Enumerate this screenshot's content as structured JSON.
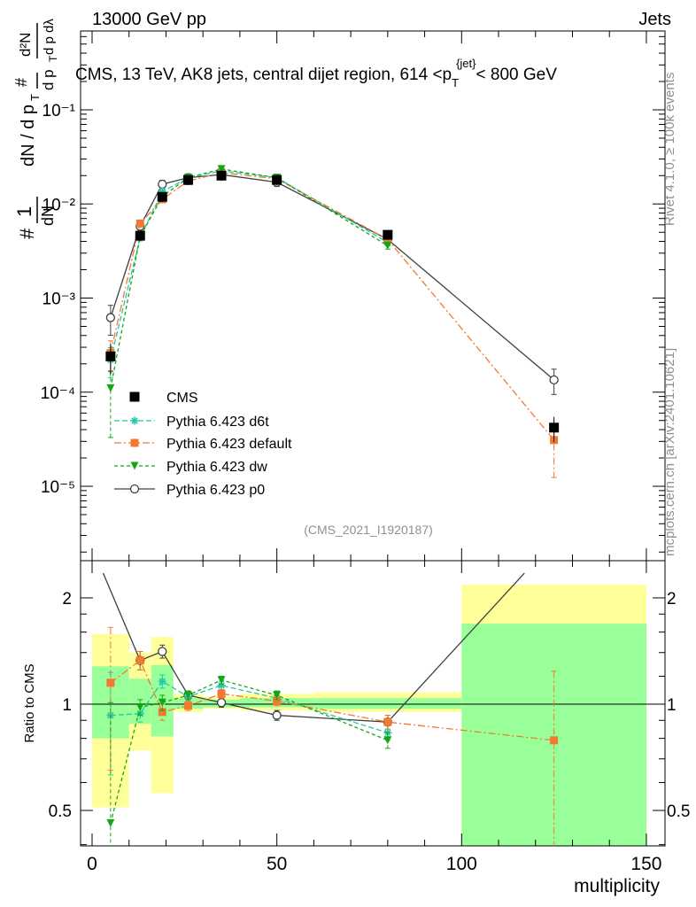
{
  "header": {
    "left": "13000 GeV pp",
    "right": "Jets",
    "plot_title": "CMS, 13 TeV, AK8 jets, central dijet region, 614 <p_T^{jet}< 800 GeV",
    "side_rivet": "Rivet 4.1.0, ≥ 100k events",
    "side_mcplots": "mcplots.cern.ch [arXiv:2401.10621]",
    "analysis_id": "(CMS_2021_I1920187)"
  },
  "colors": {
    "cms": "#000000",
    "d6t": "#22c8aa",
    "default": "#f07a30",
    "dw": "#13a813",
    "p0": "#404040",
    "band_outer": "#ffff99",
    "band_inner": "#99ff99"
  },
  "chart_data": [
    {
      "type": "line",
      "panel": "main",
      "xlabel": "multiplicity",
      "ylabel": "1/#N d#N/dp_T d²N/dp_T dλ",
      "yscale": "log",
      "ylim": [
        2e-06,
        0.3
      ],
      "xlim": [
        -3,
        153
      ],
      "y_tick_labels": [
        "10⁻⁵",
        "10⁻⁴",
        "10⁻³",
        "10⁻²",
        "10⁻¹"
      ],
      "legend_position": "lower-left",
      "series": [
        {
          "name": "CMS",
          "key": "cms",
          "marker": "square",
          "x": [
            5,
            13,
            19,
            26,
            35,
            50,
            80,
            125
          ],
          "y": [
            0.00024,
            0.0046,
            0.0119,
            0.018,
            0.02,
            0.018,
            0.0047,
            4.2e-05
          ]
        },
        {
          "name": "Pythia 6.423 d6t",
          "key": "d6t",
          "marker": "star",
          "dash": "6,3",
          "x": [
            5,
            13,
            19,
            26,
            35,
            50,
            80
          ],
          "y": [
            0.00022,
            0.0044,
            0.0135,
            0.019,
            0.0225,
            0.019,
            0.0039
          ]
        },
        {
          "name": "Pythia 6.423 default",
          "key": "default",
          "marker": "square",
          "dash": "8,3,2,3",
          "x": [
            5,
            13,
            19,
            26,
            35,
            50,
            80,
            125
          ],
          "y": [
            0.00026,
            0.0062,
            0.0112,
            0.0175,
            0.0215,
            0.0185,
            0.0042,
            3.1e-05
          ]
        },
        {
          "name": "Pythia 6.423 dw",
          "key": "dw",
          "marker": "triangle-down",
          "dash": "4,3",
          "x": [
            5,
            13,
            19,
            26,
            35,
            50,
            80
          ],
          "y": [
            0.00011,
            0.0045,
            0.012,
            0.019,
            0.0235,
            0.019,
            0.0036
          ]
        },
        {
          "name": "Pythia 6.423 p0",
          "key": "p0",
          "marker": "circle-open",
          "dash": "",
          "x": [
            5,
            13,
            19,
            26,
            35,
            50,
            80,
            125
          ],
          "y": [
            0.00062,
            0.0058,
            0.0162,
            0.019,
            0.0205,
            0.017,
            0.0042,
            0.000135
          ]
        }
      ]
    },
    {
      "type": "line",
      "panel": "ratio",
      "xlabel": "multiplicity",
      "ylabel": "Ratio to CMS",
      "ylim": [
        0.35,
        2.3
      ],
      "xlim": [
        -3,
        153
      ],
      "x_tick_labels": [
        "0",
        "50",
        "100",
        "150"
      ],
      "y_tick_labels": [
        "0.5",
        "1",
        "2"
      ],
      "bands": [
        {
          "x0": 0,
          "x1": 10,
          "outer": [
            0.51,
            1.58
          ],
          "inner": [
            0.8,
            1.28
          ]
        },
        {
          "x0": 10,
          "x1": 16,
          "outer": [
            0.74,
            1.4
          ],
          "inner": [
            0.88,
            1.18
          ]
        },
        {
          "x0": 16,
          "x1": 22,
          "outer": [
            0.56,
            1.55
          ],
          "inner": [
            0.81,
            1.29
          ]
        },
        {
          "x0": 22,
          "x1": 30,
          "outer": [
            0.95,
            1.07
          ],
          "inner": [
            0.97,
            1.04
          ]
        },
        {
          "x0": 30,
          "x1": 40,
          "outer": [
            0.97,
            1.05
          ],
          "inner": [
            0.98,
            1.03
          ]
        },
        {
          "x0": 40,
          "x1": 60,
          "outer": [
            0.96,
            1.07
          ],
          "inner": [
            0.98,
            1.04
          ]
        },
        {
          "x0": 60,
          "x1": 100,
          "outer": [
            0.95,
            1.08
          ],
          "inner": [
            0.97,
            1.04
          ]
        },
        {
          "x0": 100,
          "x1": 150,
          "outer": [
            0.35,
            2.18
          ],
          "inner": [
            0.35,
            1.69
          ]
        }
      ],
      "series": [
        {
          "name": "Pythia 6.423 d6t",
          "key": "d6t",
          "marker": "star",
          "dash": "6,3",
          "x": [
            5,
            13,
            19,
            26,
            35,
            50,
            80
          ],
          "y": [
            0.93,
            0.94,
            1.16,
            1.05,
            1.13,
            1.04,
            0.83
          ]
        },
        {
          "name": "Pythia 6.423 default",
          "key": "default",
          "marker": "square",
          "dash": "8,3,2,3",
          "x": [
            5,
            13,
            19,
            26,
            35,
            50,
            80,
            125
          ],
          "y": [
            1.15,
            1.33,
            0.95,
            0.99,
            1.07,
            1.02,
            0.89,
            0.79
          ]
        },
        {
          "name": "Pythia 6.423 dw",
          "key": "dw",
          "marker": "triangle-down",
          "dash": "4,3",
          "x": [
            5,
            13,
            19,
            26,
            35,
            50,
            80
          ],
          "y": [
            0.46,
            0.98,
            1.01,
            1.06,
            1.17,
            1.06,
            0.79
          ]
        },
        {
          "name": "Pythia 6.423 p0",
          "key": "p0",
          "marker": "circle-open",
          "dash": "",
          "x": [
            3,
            13,
            19,
            26,
            35,
            50,
            80,
            117
          ],
          "y": [
            2.35,
            1.33,
            1.41,
            1.06,
            1.01,
            0.93,
            0.89,
            2.35
          ]
        }
      ]
    }
  ]
}
